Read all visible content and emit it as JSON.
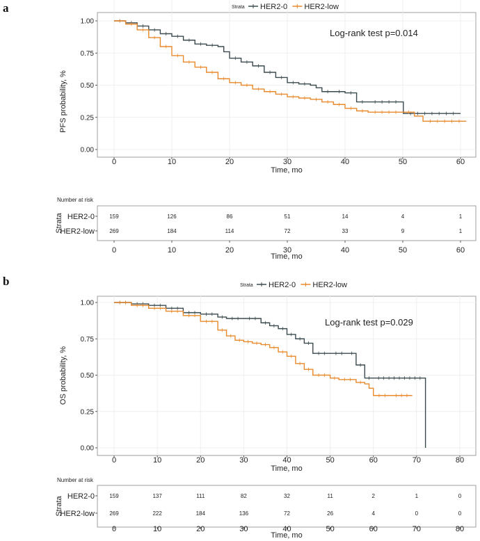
{
  "colors": {
    "her2_0": "#3b4a4f",
    "her2_low": "#e8892b",
    "axis": "#333333",
    "frame": "#888888"
  },
  "chart_data": [
    {
      "panel": "a",
      "type": "line",
      "subtype": "kaplan-meier",
      "legend_title": "Strata",
      "annotation": "Log-rank test p=0.014",
      "ylabel": "PFS probability, %",
      "xlabel": "Time, mo",
      "xlim": [
        0,
        62
      ],
      "ylim": [
        0,
        1
      ],
      "xticks": [
        0,
        10,
        20,
        30,
        40,
        50,
        60
      ],
      "yticks": [
        "0.00",
        "0.25",
        "0.50",
        "0.75",
        "1.00"
      ],
      "series": [
        {
          "name": "HER2-0",
          "color_key": "her2_0",
          "x": [
            0,
            2,
            4,
            6,
            8,
            10,
            12,
            14,
            16,
            18,
            19,
            20,
            22,
            24,
            26,
            28,
            30,
            32,
            34,
            35,
            36,
            38,
            40,
            42,
            44,
            50,
            50.1,
            60
          ],
          "y": [
            1.0,
            0.985,
            0.96,
            0.93,
            0.9,
            0.88,
            0.85,
            0.82,
            0.81,
            0.8,
            0.76,
            0.71,
            0.68,
            0.65,
            0.6,
            0.56,
            0.52,
            0.51,
            0.5,
            0.48,
            0.45,
            0.45,
            0.44,
            0.37,
            0.37,
            0.37,
            0.28,
            0.28
          ]
        },
        {
          "name": "HER2-low",
          "color_key": "her2_low",
          "x": [
            0,
            2,
            4,
            6,
            8,
            10,
            12,
            14,
            16,
            18,
            20,
            22,
            24,
            26,
            28,
            30,
            32,
            34,
            36,
            38,
            40,
            42,
            44,
            50,
            52,
            53.5,
            61
          ],
          "y": [
            1.0,
            0.975,
            0.93,
            0.87,
            0.8,
            0.73,
            0.68,
            0.64,
            0.6,
            0.55,
            0.52,
            0.5,
            0.47,
            0.45,
            0.43,
            0.41,
            0.4,
            0.39,
            0.37,
            0.35,
            0.32,
            0.3,
            0.29,
            0.29,
            0.26,
            0.22,
            0.22
          ]
        }
      ],
      "risk_table": {
        "title": "Number at risk",
        "ylabel": "Strata",
        "xlabel": "Time, mo",
        "xticks": [
          0,
          10,
          20,
          30,
          40,
          50,
          60
        ],
        "rows": [
          {
            "label": "HER2-0",
            "values": [
              "159",
              "126",
              "86",
              "51",
              "14",
              "4",
              "1"
            ]
          },
          {
            "label": "HER2-low",
            "values": [
              "269",
              "184",
              "114",
              "72",
              "33",
              "9",
              "1"
            ]
          }
        ]
      }
    },
    {
      "panel": "b",
      "type": "line",
      "subtype": "kaplan-meier",
      "legend_title": "Strata",
      "annotation": "Log-rank test p=0.029",
      "ylabel": "OS probability, %",
      "xlabel": "Time, mo",
      "xlim": [
        0,
        82
      ],
      "ylim": [
        0,
        1
      ],
      "xticks": [
        0,
        10,
        20,
        30,
        40,
        50,
        60,
        70,
        80
      ],
      "yticks": [
        "0.00",
        "0.25",
        "0.50",
        "0.75",
        "1.00"
      ],
      "series": [
        {
          "name": "HER2-0",
          "color_key": "her2_0",
          "x": [
            0,
            4,
            8,
            12,
            16,
            20,
            24,
            26,
            30,
            34,
            36,
            38,
            40,
            42,
            44,
            46,
            50,
            54,
            56,
            58,
            60,
            72,
            72.05
          ],
          "y": [
            1.0,
            0.99,
            0.98,
            0.96,
            0.93,
            0.92,
            0.9,
            0.89,
            0.89,
            0.86,
            0.84,
            0.82,
            0.78,
            0.75,
            0.72,
            0.65,
            0.65,
            0.65,
            0.57,
            0.48,
            0.48,
            0.48,
            0.0
          ]
        },
        {
          "name": "HER2-low",
          "color_key": "her2_low",
          "x": [
            0,
            4,
            8,
            12,
            16,
            20,
            24,
            26,
            28,
            30,
            32,
            34,
            36,
            38,
            40,
            42,
            44,
            46,
            50,
            52,
            56,
            58,
            59,
            60,
            64,
            69
          ],
          "y": [
            1.0,
            0.98,
            0.96,
            0.94,
            0.91,
            0.87,
            0.81,
            0.77,
            0.74,
            0.73,
            0.72,
            0.71,
            0.69,
            0.66,
            0.63,
            0.58,
            0.54,
            0.5,
            0.48,
            0.47,
            0.45,
            0.44,
            0.41,
            0.36,
            0.36,
            0.36
          ]
        }
      ],
      "risk_table": {
        "title": "Number at risk",
        "ylabel": "Strata",
        "xlabel": "Time, mo",
        "xticks": [
          0,
          10,
          20,
          30,
          40,
          50,
          60,
          70,
          80
        ],
        "rows": [
          {
            "label": "HER2-0",
            "values": [
              "159",
              "137",
              "111",
              "82",
              "32",
              "11",
              "2",
              "1",
              "0"
            ]
          },
          {
            "label": "HER2-low",
            "values": [
              "269",
              "222",
              "184",
              "136",
              "72",
              "26",
              "4",
              "0",
              "0"
            ]
          }
        ]
      }
    }
  ]
}
